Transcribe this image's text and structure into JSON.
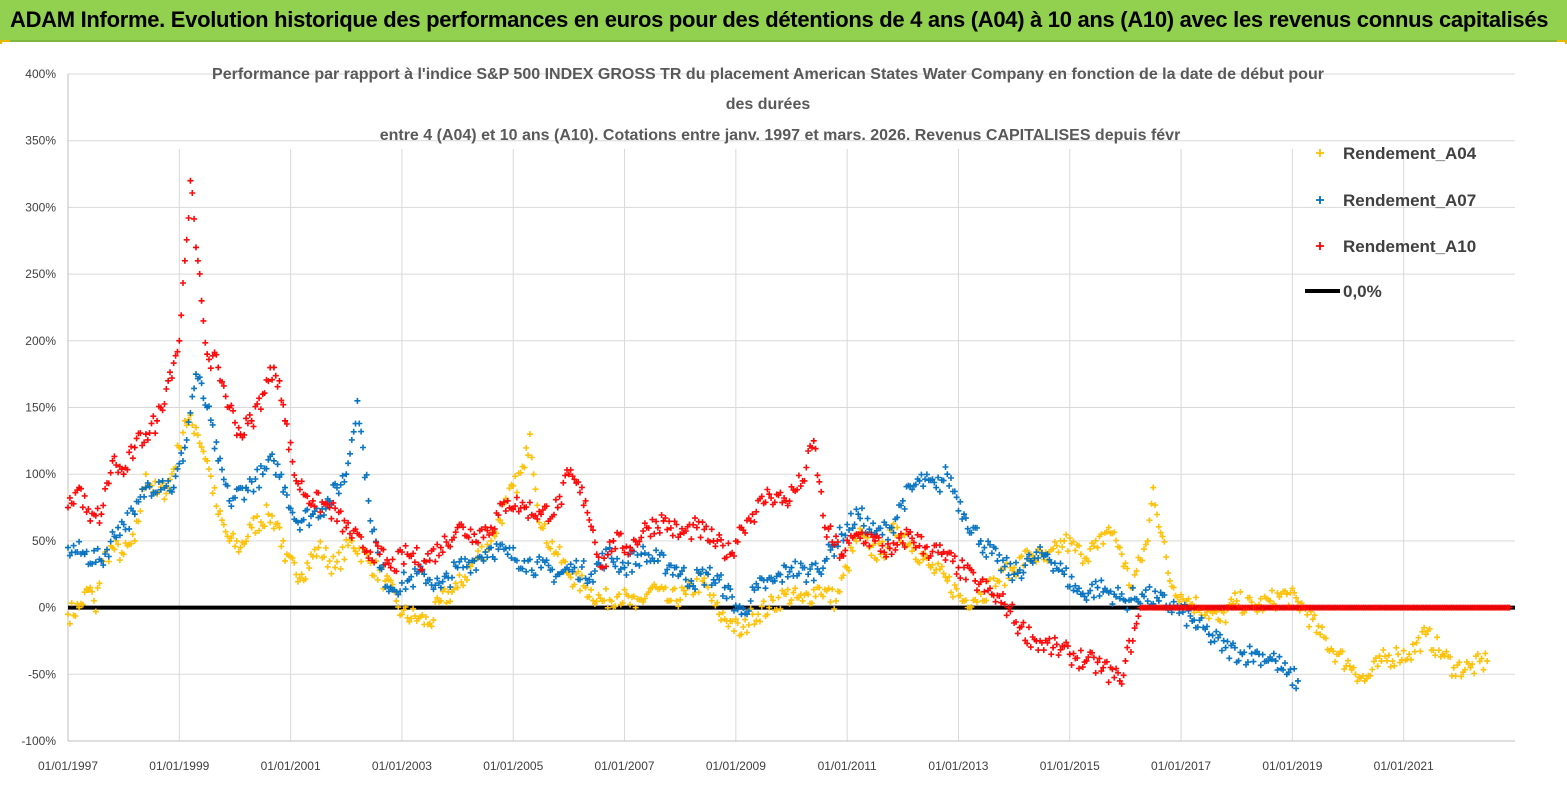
{
  "header": {
    "title": "ADAM Informe. Evolution historique des performances en euros pour des détentions de 4 ans (A04) à 10 ans (A10) avec les revenus connus capitalisés"
  },
  "chart_data": {
    "type": "scatter",
    "title_lines": [
      "Performance par rapport à l'indice S&P 500 INDEX GROSS TR  du placement American States Water Company en fonction de la date de début pour",
      "des durées",
      "entre 4 (A04) et 10 ans (A10). Cotations entre janv. 1997 et mars. 2026. Revenus CAPITALISES depuis févr"
    ],
    "x_tick_labels": [
      "01/01/1997",
      "01/01/1999",
      "01/01/2001",
      "01/01/2003",
      "01/01/2005",
      "01/01/2007",
      "01/01/2009",
      "01/01/2011",
      "01/01/2013",
      "01/01/2015",
      "01/01/2017",
      "01/01/2019",
      "01/01/2021"
    ],
    "x_range": [
      1997.0,
      2023.0
    ],
    "y_tick_labels": [
      "400%",
      "350%",
      "300%",
      "250%",
      "200%",
      "150%",
      "100%",
      "50%",
      "0%",
      "-50%",
      "-100%"
    ],
    "y_range": [
      -100,
      400
    ],
    "legend_position": "top-right",
    "series": [
      {
        "name": "Rendement_A04",
        "color": "#ffc000",
        "points": [
          [
            1997.0,
            -5
          ],
          [
            1997.2,
            0
          ],
          [
            1997.4,
            15
          ],
          [
            1997.5,
            -3
          ],
          [
            1997.6,
            35
          ],
          [
            1997.8,
            45
          ],
          [
            1998.0,
            40
          ],
          [
            1998.2,
            50
          ],
          [
            1998.4,
            100
          ],
          [
            1998.6,
            85
          ],
          [
            1998.8,
            90
          ],
          [
            1999.0,
            120
          ],
          [
            1999.1,
            140
          ],
          [
            1999.3,
            135
          ],
          [
            1999.5,
            110
          ],
          [
            1999.7,
            70
          ],
          [
            1999.9,
            50
          ],
          [
            2000.1,
            45
          ],
          [
            2000.3,
            60
          ],
          [
            2000.6,
            70
          ],
          [
            2000.8,
            60
          ],
          [
            2000.9,
            35
          ],
          [
            2001.2,
            25
          ],
          [
            2001.5,
            45
          ],
          [
            2001.8,
            30
          ],
          [
            2002.1,
            50
          ],
          [
            2002.4,
            35
          ],
          [
            2002.7,
            20
          ],
          [
            2002.9,
            5
          ],
          [
            2003.0,
            -5
          ],
          [
            2003.3,
            -8
          ],
          [
            2003.5,
            -12
          ],
          [
            2003.7,
            5
          ],
          [
            2004.0,
            15
          ],
          [
            2004.3,
            35
          ],
          [
            2004.6,
            50
          ],
          [
            2004.9,
            80
          ],
          [
            2005.2,
            105
          ],
          [
            2005.3,
            130
          ],
          [
            2005.5,
            60
          ],
          [
            2005.8,
            40
          ],
          [
            2006.0,
            25
          ],
          [
            2006.3,
            15
          ],
          [
            2006.6,
            5
          ],
          [
            2006.9,
            10
          ],
          [
            2007.2,
            0
          ],
          [
            2007.5,
            15
          ],
          [
            2007.8,
            5
          ],
          [
            2008.1,
            10
          ],
          [
            2008.4,
            20
          ],
          [
            2008.7,
            -5
          ],
          [
            2008.9,
            -10
          ],
          [
            2009.1,
            -20
          ],
          [
            2009.3,
            -5
          ],
          [
            2009.6,
            0
          ],
          [
            2009.9,
            10
          ],
          [
            2010.2,
            5
          ],
          [
            2010.5,
            15
          ],
          [
            2010.8,
            5
          ],
          [
            2011.0,
            30
          ],
          [
            2011.2,
            55
          ],
          [
            2011.4,
            45
          ],
          [
            2011.6,
            40
          ],
          [
            2011.9,
            60
          ],
          [
            2012.2,
            45
          ],
          [
            2012.5,
            30
          ],
          [
            2012.8,
            20
          ],
          [
            2013.1,
            5
          ],
          [
            2013.4,
            10
          ],
          [
            2013.7,
            20
          ],
          [
            2014.0,
            30
          ],
          [
            2014.3,
            40
          ],
          [
            2014.6,
            35
          ],
          [
            2014.9,
            50
          ],
          [
            2015.2,
            40
          ],
          [
            2015.5,
            45
          ],
          [
            2015.7,
            60
          ],
          [
            2015.9,
            45
          ],
          [
            2016.1,
            15
          ],
          [
            2016.4,
            50
          ],
          [
            2016.5,
            90
          ],
          [
            2016.8,
            20
          ],
          [
            2017.1,
            5
          ],
          [
            2017.4,
            0
          ],
          [
            2017.7,
            -10
          ],
          [
            2018.0,
            5
          ],
          [
            2018.3,
            0
          ],
          [
            2018.6,
            5
          ],
          [
            2018.9,
            10
          ],
          [
            2019.2,
            0
          ],
          [
            2019.5,
            -20
          ],
          [
            2019.8,
            -35
          ],
          [
            2020.1,
            -45
          ],
          [
            2020.3,
            -55
          ],
          [
            2020.6,
            -40
          ],
          [
            2020.9,
            -35
          ],
          [
            2021.1,
            -35
          ],
          [
            2021.4,
            -20
          ],
          [
            2021.7,
            -35
          ],
          [
            2021.9,
            -45
          ],
          [
            2022.2,
            -45
          ],
          [
            2022.5,
            -40
          ]
        ]
      },
      {
        "name": "Rendement_A07",
        "color": "#0070c0",
        "points": [
          [
            1997.0,
            45
          ],
          [
            1997.3,
            40
          ],
          [
            1997.6,
            35
          ],
          [
            1997.9,
            60
          ],
          [
            1998.2,
            70
          ],
          [
            1998.4,
            90
          ],
          [
            1998.7,
            95
          ],
          [
            1998.9,
            90
          ],
          [
            1999.1,
            120
          ],
          [
            1999.3,
            175
          ],
          [
            1999.5,
            150
          ],
          [
            1999.7,
            110
          ],
          [
            1999.9,
            80
          ],
          [
            2000.2,
            90
          ],
          [
            2000.5,
            100
          ],
          [
            2000.7,
            110
          ],
          [
            2000.9,
            90
          ],
          [
            2001.1,
            65
          ],
          [
            2001.4,
            70
          ],
          [
            2001.7,
            80
          ],
          [
            2002.0,
            100
          ],
          [
            2002.2,
            155
          ],
          [
            2002.4,
            80
          ],
          [
            2002.6,
            30
          ],
          [
            2002.8,
            15
          ],
          [
            2003.1,
            20
          ],
          [
            2003.4,
            25
          ],
          [
            2003.7,
            15
          ],
          [
            2004.0,
            30
          ],
          [
            2004.3,
            35
          ],
          [
            2004.6,
            45
          ],
          [
            2004.9,
            40
          ],
          [
            2005.2,
            35
          ],
          [
            2005.5,
            30
          ],
          [
            2005.8,
            25
          ],
          [
            2006.1,
            30
          ],
          [
            2006.4,
            25
          ],
          [
            2006.7,
            40
          ],
          [
            2007.0,
            30
          ],
          [
            2007.3,
            40
          ],
          [
            2007.6,
            35
          ],
          [
            2007.9,
            30
          ],
          [
            2008.2,
            20
          ],
          [
            2008.5,
            25
          ],
          [
            2008.8,
            15
          ],
          [
            2009.1,
            -5
          ],
          [
            2009.4,
            15
          ],
          [
            2009.7,
            20
          ],
          [
            2010.0,
            30
          ],
          [
            2010.3,
            25
          ],
          [
            2010.6,
            35
          ],
          [
            2010.9,
            55
          ],
          [
            2011.2,
            70
          ],
          [
            2011.5,
            55
          ],
          [
            2011.8,
            60
          ],
          [
            2012.0,
            80
          ],
          [
            2012.3,
            95
          ],
          [
            2012.6,
            90
          ],
          [
            2012.8,
            100
          ],
          [
            2013.1,
            70
          ],
          [
            2013.4,
            50
          ],
          [
            2013.7,
            35
          ],
          [
            2014.0,
            25
          ],
          [
            2014.3,
            35
          ],
          [
            2014.6,
            40
          ],
          [
            2014.9,
            25
          ],
          [
            2015.2,
            10
          ],
          [
            2015.5,
            15
          ],
          [
            2015.8,
            10
          ],
          [
            2016.0,
            5
          ],
          [
            2016.3,
            10
          ],
          [
            2016.6,
            5
          ],
          [
            2016.9,
            0
          ],
          [
            2017.2,
            -10
          ],
          [
            2017.5,
            -20
          ],
          [
            2017.8,
            -30
          ],
          [
            2018.1,
            -35
          ],
          [
            2018.4,
            -35
          ],
          [
            2018.7,
            -40
          ],
          [
            2018.9,
            -50
          ],
          [
            2019.1,
            -55
          ]
        ]
      },
      {
        "name": "Rendement_A10",
        "color": "#ff0000",
        "points": [
          [
            1997.0,
            75
          ],
          [
            1997.2,
            90
          ],
          [
            1997.4,
            65
          ],
          [
            1997.6,
            70
          ],
          [
            1997.8,
            110
          ],
          [
            1998.0,
            100
          ],
          [
            1998.2,
            120
          ],
          [
            1998.4,
            130
          ],
          [
            1998.6,
            140
          ],
          [
            1998.8,
            170
          ],
          [
            1999.0,
            200
          ],
          [
            1999.1,
            260
          ],
          [
            1999.2,
            320
          ],
          [
            1999.3,
            270
          ],
          [
            1999.4,
            230
          ],
          [
            1999.5,
            190
          ],
          [
            1999.7,
            180
          ],
          [
            1999.9,
            150
          ],
          [
            2000.1,
            130
          ],
          [
            2000.3,
            140
          ],
          [
            2000.5,
            160
          ],
          [
            2000.7,
            180
          ],
          [
            2000.8,
            170
          ],
          [
            2000.9,
            140
          ],
          [
            2001.1,
            95
          ],
          [
            2001.4,
            80
          ],
          [
            2001.7,
            75
          ],
          [
            2002.0,
            60
          ],
          [
            2002.3,
            45
          ],
          [
            2002.6,
            40
          ],
          [
            2002.8,
            30
          ],
          [
            2003.1,
            40
          ],
          [
            2003.4,
            35
          ],
          [
            2003.7,
            45
          ],
          [
            2004.0,
            60
          ],
          [
            2004.3,
            55
          ],
          [
            2004.6,
            60
          ],
          [
            2004.9,
            80
          ],
          [
            2005.2,
            75
          ],
          [
            2005.5,
            70
          ],
          [
            2005.8,
            75
          ],
          [
            2006.0,
            100
          ],
          [
            2006.3,
            80
          ],
          [
            2006.6,
            30
          ],
          [
            2006.8,
            50
          ],
          [
            2007.1,
            45
          ],
          [
            2007.4,
            60
          ],
          [
            2007.7,
            65
          ],
          [
            2008.0,
            55
          ],
          [
            2008.3,
            60
          ],
          [
            2008.6,
            50
          ],
          [
            2008.9,
            40
          ],
          [
            2009.1,
            60
          ],
          [
            2009.3,
            70
          ],
          [
            2009.6,
            85
          ],
          [
            2009.9,
            80
          ],
          [
            2010.2,
            95
          ],
          [
            2010.4,
            125
          ],
          [
            2010.6,
            60
          ],
          [
            2010.9,
            40
          ],
          [
            2011.2,
            55
          ],
          [
            2011.5,
            50
          ],
          [
            2011.8,
            40
          ],
          [
            2012.1,
            55
          ],
          [
            2012.4,
            45
          ],
          [
            2012.7,
            40
          ],
          [
            2013.0,
            30
          ],
          [
            2013.3,
            20
          ],
          [
            2013.6,
            10
          ],
          [
            2013.9,
            0
          ],
          [
            2014.1,
            -15
          ],
          [
            2014.4,
            -25
          ],
          [
            2014.7,
            -30
          ],
          [
            2015.0,
            -35
          ],
          [
            2015.3,
            -40
          ],
          [
            2015.6,
            -45
          ],
          [
            2015.9,
            -55
          ],
          [
            2016.0,
            -40
          ],
          [
            2016.3,
            0
          ],
          [
            2016.9,
            0
          ],
          [
            2017.5,
            0
          ],
          [
            2018.1,
            0
          ],
          [
            2018.7,
            0
          ],
          [
            2019.3,
            0
          ],
          [
            2019.9,
            0
          ],
          [
            2020.5,
            0
          ],
          [
            2021.1,
            0
          ],
          [
            2021.7,
            0
          ],
          [
            2022.3,
            0
          ],
          [
            2022.9,
            0
          ]
        ]
      },
      {
        "name": "0,0%",
        "color": "#000000",
        "line": true,
        "points": [
          [
            1997.0,
            0
          ],
          [
            2023.0,
            0
          ]
        ]
      }
    ]
  }
}
